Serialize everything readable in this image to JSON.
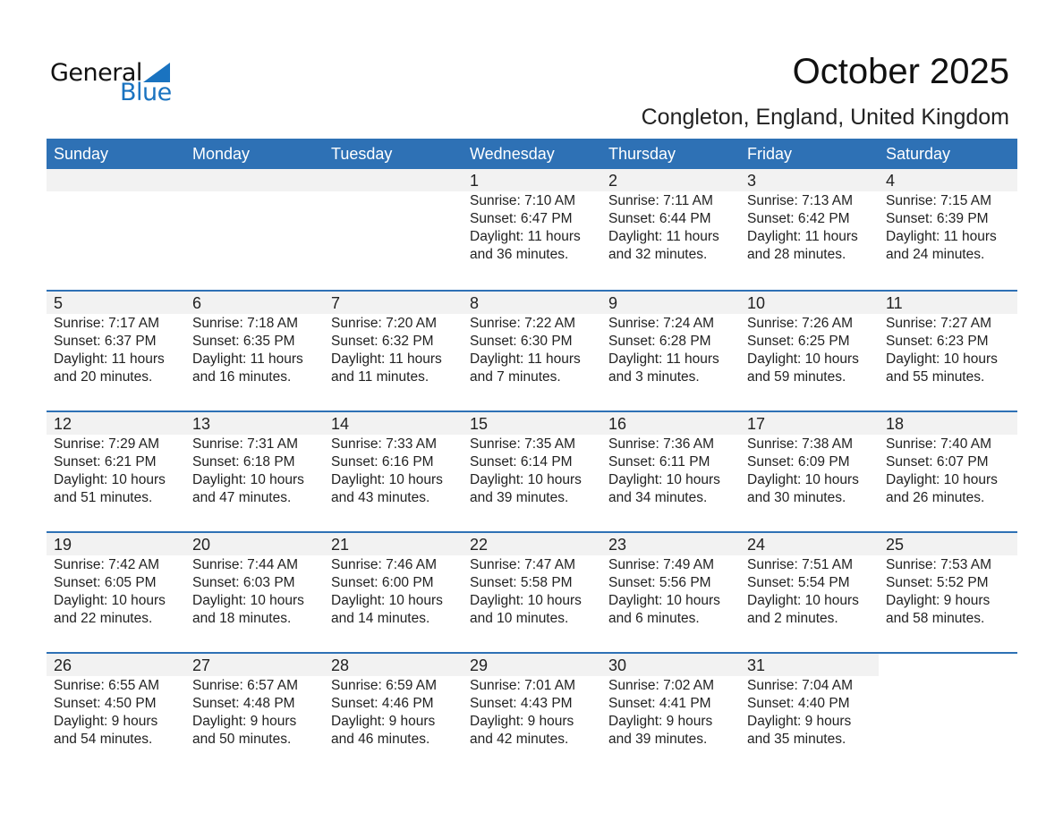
{
  "logo": {
    "general": "General",
    "blue": "Blue"
  },
  "title": "October 2025",
  "subtitle": "Congleton, England, United Kingdom",
  "colors": {
    "header": "#2e71b5",
    "day_band": "#f2f2f2",
    "logo_blue": "#1a73c0"
  },
  "weekdays": [
    "Sunday",
    "Monday",
    "Tuesday",
    "Wednesday",
    "Thursday",
    "Friday",
    "Saturday"
  ],
  "first_weekday_offset": 3,
  "days": [
    {
      "day": "1",
      "sunrise": "Sunrise: 7:10 AM",
      "sunset": "Sunset: 6:47 PM",
      "daylight": "Daylight: 11 hours",
      "minutes": "and 36 minutes."
    },
    {
      "day": "2",
      "sunrise": "Sunrise: 7:11 AM",
      "sunset": "Sunset: 6:44 PM",
      "daylight": "Daylight: 11 hours",
      "minutes": "and 32 minutes."
    },
    {
      "day": "3",
      "sunrise": "Sunrise: 7:13 AM",
      "sunset": "Sunset: 6:42 PM",
      "daylight": "Daylight: 11 hours",
      "minutes": "and 28 minutes."
    },
    {
      "day": "4",
      "sunrise": "Sunrise: 7:15 AM",
      "sunset": "Sunset: 6:39 PM",
      "daylight": "Daylight: 11 hours",
      "minutes": "and 24 minutes."
    },
    {
      "day": "5",
      "sunrise": "Sunrise: 7:17 AM",
      "sunset": "Sunset: 6:37 PM",
      "daylight": "Daylight: 11 hours",
      "minutes": "and 20 minutes."
    },
    {
      "day": "6",
      "sunrise": "Sunrise: 7:18 AM",
      "sunset": "Sunset: 6:35 PM",
      "daylight": "Daylight: 11 hours",
      "minutes": "and 16 minutes."
    },
    {
      "day": "7",
      "sunrise": "Sunrise: 7:20 AM",
      "sunset": "Sunset: 6:32 PM",
      "daylight": "Daylight: 11 hours",
      "minutes": "and 11 minutes."
    },
    {
      "day": "8",
      "sunrise": "Sunrise: 7:22 AM",
      "sunset": "Sunset: 6:30 PM",
      "daylight": "Daylight: 11 hours",
      "minutes": "and 7 minutes."
    },
    {
      "day": "9",
      "sunrise": "Sunrise: 7:24 AM",
      "sunset": "Sunset: 6:28 PM",
      "daylight": "Daylight: 11 hours",
      "minutes": "and 3 minutes."
    },
    {
      "day": "10",
      "sunrise": "Sunrise: 7:26 AM",
      "sunset": "Sunset: 6:25 PM",
      "daylight": "Daylight: 10 hours",
      "minutes": "and 59 minutes."
    },
    {
      "day": "11",
      "sunrise": "Sunrise: 7:27 AM",
      "sunset": "Sunset: 6:23 PM",
      "daylight": "Daylight: 10 hours",
      "minutes": "and 55 minutes."
    },
    {
      "day": "12",
      "sunrise": "Sunrise: 7:29 AM",
      "sunset": "Sunset: 6:21 PM",
      "daylight": "Daylight: 10 hours",
      "minutes": "and 51 minutes."
    },
    {
      "day": "13",
      "sunrise": "Sunrise: 7:31 AM",
      "sunset": "Sunset: 6:18 PM",
      "daylight": "Daylight: 10 hours",
      "minutes": "and 47 minutes."
    },
    {
      "day": "14",
      "sunrise": "Sunrise: 7:33 AM",
      "sunset": "Sunset: 6:16 PM",
      "daylight": "Daylight: 10 hours",
      "minutes": "and 43 minutes."
    },
    {
      "day": "15",
      "sunrise": "Sunrise: 7:35 AM",
      "sunset": "Sunset: 6:14 PM",
      "daylight": "Daylight: 10 hours",
      "minutes": "and 39 minutes."
    },
    {
      "day": "16",
      "sunrise": "Sunrise: 7:36 AM",
      "sunset": "Sunset: 6:11 PM",
      "daylight": "Daylight: 10 hours",
      "minutes": "and 34 minutes."
    },
    {
      "day": "17",
      "sunrise": "Sunrise: 7:38 AM",
      "sunset": "Sunset: 6:09 PM",
      "daylight": "Daylight: 10 hours",
      "minutes": "and 30 minutes."
    },
    {
      "day": "18",
      "sunrise": "Sunrise: 7:40 AM",
      "sunset": "Sunset: 6:07 PM",
      "daylight": "Daylight: 10 hours",
      "minutes": "and 26 minutes."
    },
    {
      "day": "19",
      "sunrise": "Sunrise: 7:42 AM",
      "sunset": "Sunset: 6:05 PM",
      "daylight": "Daylight: 10 hours",
      "minutes": "and 22 minutes."
    },
    {
      "day": "20",
      "sunrise": "Sunrise: 7:44 AM",
      "sunset": "Sunset: 6:03 PM",
      "daylight": "Daylight: 10 hours",
      "minutes": "and 18 minutes."
    },
    {
      "day": "21",
      "sunrise": "Sunrise: 7:46 AM",
      "sunset": "Sunset: 6:00 PM",
      "daylight": "Daylight: 10 hours",
      "minutes": "and 14 minutes."
    },
    {
      "day": "22",
      "sunrise": "Sunrise: 7:47 AM",
      "sunset": "Sunset: 5:58 PM",
      "daylight": "Daylight: 10 hours",
      "minutes": "and 10 minutes."
    },
    {
      "day": "23",
      "sunrise": "Sunrise: 7:49 AM",
      "sunset": "Sunset: 5:56 PM",
      "daylight": "Daylight: 10 hours",
      "minutes": "and 6 minutes."
    },
    {
      "day": "24",
      "sunrise": "Sunrise: 7:51 AM",
      "sunset": "Sunset: 5:54 PM",
      "daylight": "Daylight: 10 hours",
      "minutes": "and 2 minutes."
    },
    {
      "day": "25",
      "sunrise": "Sunrise: 7:53 AM",
      "sunset": "Sunset: 5:52 PM",
      "daylight": "Daylight: 9 hours",
      "minutes": "and 58 minutes."
    },
    {
      "day": "26",
      "sunrise": "Sunrise: 6:55 AM",
      "sunset": "Sunset: 4:50 PM",
      "daylight": "Daylight: 9 hours",
      "minutes": "and 54 minutes."
    },
    {
      "day": "27",
      "sunrise": "Sunrise: 6:57 AM",
      "sunset": "Sunset: 4:48 PM",
      "daylight": "Daylight: 9 hours",
      "minutes": "and 50 minutes."
    },
    {
      "day": "28",
      "sunrise": "Sunrise: 6:59 AM",
      "sunset": "Sunset: 4:46 PM",
      "daylight": "Daylight: 9 hours",
      "minutes": "and 46 minutes."
    },
    {
      "day": "29",
      "sunrise": "Sunrise: 7:01 AM",
      "sunset": "Sunset: 4:43 PM",
      "daylight": "Daylight: 9 hours",
      "minutes": "and 42 minutes."
    },
    {
      "day": "30",
      "sunrise": "Sunrise: 7:02 AM",
      "sunset": "Sunset: 4:41 PM",
      "daylight": "Daylight: 9 hours",
      "minutes": "and 39 minutes."
    },
    {
      "day": "31",
      "sunrise": "Sunrise: 7:04 AM",
      "sunset": "Sunset: 4:40 PM",
      "daylight": "Daylight: 9 hours",
      "minutes": "and 35 minutes."
    }
  ]
}
